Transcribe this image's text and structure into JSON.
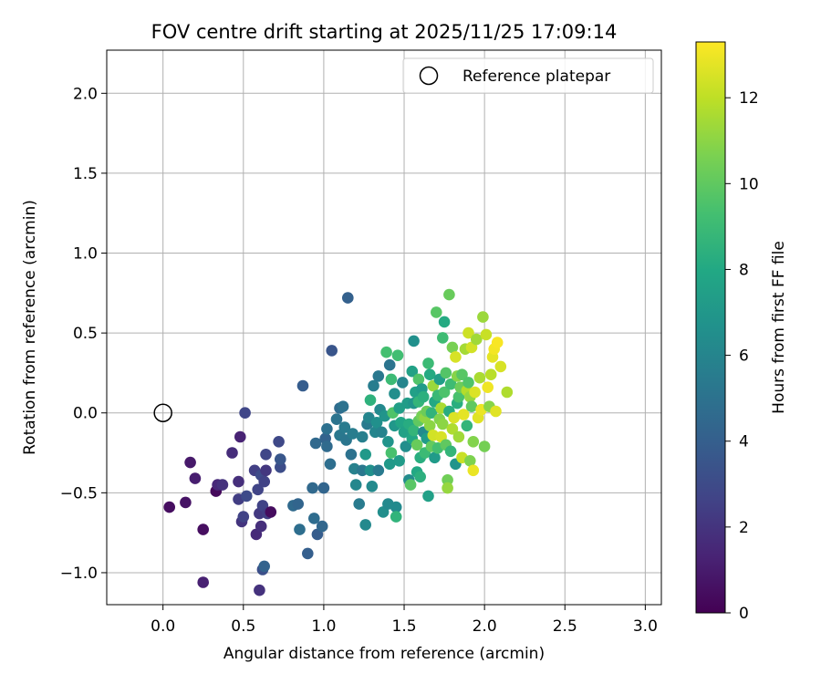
{
  "chart_data": {
    "type": "scatter",
    "title": "FOV centre drift starting at 2025/11/25 17:09:14",
    "xlabel": "Angular distance from reference (arcmin)",
    "ylabel": "Rotation from reference (arcmin)",
    "xlim": [
      -0.35,
      3.1
    ],
    "ylim": [
      -1.2,
      2.27
    ],
    "xticks": [
      0.0,
      0.5,
      1.0,
      1.5,
      2.0,
      2.5,
      3.0
    ],
    "xtick_labels": [
      "0.0",
      "0.5",
      "1.0",
      "1.5",
      "2.0",
      "2.5",
      "3.0"
    ],
    "yticks": [
      -1.0,
      -0.5,
      0.0,
      0.5,
      1.0,
      1.5,
      2.0
    ],
    "ytick_labels": [
      "−1.0",
      "−0.5",
      "0.0",
      "0.5",
      "1.0",
      "1.5",
      "2.0"
    ],
    "grid": true,
    "legend": {
      "placement": "top-right",
      "entries": [
        "Reference platepar"
      ]
    },
    "reference_point": {
      "x": 0.0,
      "y": 0.0
    },
    "colorbar": {
      "label": "Hours from first FF file",
      "colormap": "viridis",
      "range": [
        0,
        13.3
      ],
      "ticks": [
        0,
        2,
        4,
        6,
        8,
        10,
        12
      ],
      "tick_labels": [
        "0",
        "2",
        "4",
        "6",
        "8",
        "10",
        "12"
      ]
    },
    "points": [
      [
        0.04,
        -0.59,
        0.5
      ],
      [
        0.14,
        -0.56,
        0.7
      ],
      [
        0.17,
        -0.31,
        0.9
      ],
      [
        0.2,
        -0.41,
        1.1
      ],
      [
        0.25,
        -0.73,
        0.5
      ],
      [
        0.25,
        -1.06,
        1.2
      ],
      [
        0.33,
        -0.49,
        0.3
      ],
      [
        0.34,
        -0.45,
        1.6
      ],
      [
        0.37,
        -0.45,
        1.9
      ],
      [
        0.43,
        -0.25,
        1.7
      ],
      [
        0.47,
        -0.43,
        1.8
      ],
      [
        0.47,
        -0.54,
        2.4
      ],
      [
        0.48,
        -0.15,
        1.3
      ],
      [
        0.49,
        -0.68,
        2.0
      ],
      [
        0.5,
        -0.65,
        2.6
      ],
      [
        0.51,
        0.0,
        2.8
      ],
      [
        0.52,
        -0.52,
        3.0
      ],
      [
        0.57,
        -0.36,
        2.5
      ],
      [
        0.58,
        -0.76,
        1.6
      ],
      [
        0.59,
        -0.48,
        2.7
      ],
      [
        0.6,
        -0.63,
        2.2
      ],
      [
        0.6,
        -1.11,
        1.9
      ],
      [
        0.61,
        -0.39,
        3.0
      ],
      [
        0.61,
        -0.71,
        1.8
      ],
      [
        0.62,
        -0.58,
        2.6
      ],
      [
        0.62,
        -0.98,
        3.2
      ],
      [
        0.63,
        -0.96,
        4.2
      ],
      [
        0.63,
        -0.43,
        2.6
      ],
      [
        0.64,
        -0.36,
        2.1
      ],
      [
        0.64,
        -0.26,
        2.8
      ],
      [
        0.65,
        -0.63,
        2.4
      ],
      [
        0.67,
        -0.62,
        0.4
      ],
      [
        0.72,
        -0.18,
        2.9
      ],
      [
        0.73,
        -0.34,
        3.1
      ],
      [
        0.73,
        -0.29,
        3.6
      ],
      [
        0.81,
        -0.58,
        4.6
      ],
      [
        0.84,
        -0.57,
        4.3
      ],
      [
        0.85,
        -0.73,
        4.8
      ],
      [
        0.87,
        0.17,
        3.9
      ],
      [
        0.9,
        -0.88,
        4.0
      ],
      [
        0.93,
        -0.47,
        4.5
      ],
      [
        0.94,
        -0.66,
        4.7
      ],
      [
        0.95,
        -0.19,
        4.5
      ],
      [
        0.96,
        -0.76,
        3.9
      ],
      [
        0.99,
        -0.71,
        4.4
      ],
      [
        1.0,
        -0.47,
        4.3
      ],
      [
        1.01,
        -0.16,
        4.2
      ],
      [
        1.02,
        -0.21,
        4.6
      ],
      [
        1.02,
        -0.1,
        4.9
      ],
      [
        1.04,
        -0.32,
        4.8
      ],
      [
        1.05,
        0.39,
        3.5
      ],
      [
        1.08,
        -0.04,
        5.1
      ],
      [
        1.1,
        -0.14,
        5.3
      ],
      [
        1.1,
        0.03,
        4.7
      ],
      [
        1.12,
        0.04,
        5.0
      ],
      [
        1.13,
        -0.09,
        5.5
      ],
      [
        1.14,
        -0.17,
        5.2
      ],
      [
        1.15,
        0.72,
        4.1
      ],
      [
        1.17,
        -0.26,
        5.0
      ],
      [
        1.18,
        -0.13,
        5.6
      ],
      [
        1.19,
        -0.35,
        5.8
      ],
      [
        1.2,
        -0.45,
        6.1
      ],
      [
        1.22,
        -0.57,
        5.5
      ],
      [
        1.24,
        -0.15,
        5.7
      ],
      [
        1.24,
        -0.36,
        5.3
      ],
      [
        1.26,
        -0.26,
        7.1
      ],
      [
        1.26,
        -0.7,
        6.2
      ],
      [
        1.27,
        -0.07,
        5.4
      ],
      [
        1.28,
        -0.03,
        6.0
      ],
      [
        1.29,
        0.08,
        8.5
      ],
      [
        1.29,
        -0.36,
        6.6
      ],
      [
        1.3,
        -0.46,
        6.3
      ],
      [
        1.31,
        0.17,
        5.6
      ],
      [
        1.32,
        -0.12,
        6.0
      ],
      [
        1.33,
        -0.06,
        6.6
      ],
      [
        1.34,
        -0.36,
        5.4
      ],
      [
        1.34,
        0.23,
        5.3
      ],
      [
        1.35,
        0.02,
        6.2
      ],
      [
        1.36,
        -0.12,
        5.9
      ],
      [
        1.37,
        -0.62,
        6.5
      ],
      [
        1.38,
        -0.02,
        6.8
      ],
      [
        1.39,
        0.38,
        9.3
      ],
      [
        1.4,
        -0.57,
        6.2
      ],
      [
        1.4,
        -0.18,
        6.8
      ],
      [
        1.41,
        -0.32,
        7.1
      ],
      [
        1.41,
        0.3,
        5.1
      ],
      [
        1.42,
        -0.25,
        9.4
      ],
      [
        1.42,
        0.21,
        9.0
      ],
      [
        1.43,
        0.0,
        9.6
      ],
      [
        1.44,
        -0.08,
        7.0
      ],
      [
        1.44,
        0.12,
        6.5
      ],
      [
        1.45,
        -0.59,
        6.3
      ],
      [
        1.45,
        -0.65,
        8.6
      ],
      [
        1.46,
        0.36,
        9.2
      ],
      [
        1.47,
        -0.3,
        7.2
      ],
      [
        1.47,
        0.03,
        7.4
      ],
      [
        1.48,
        -0.06,
        7.8
      ],
      [
        1.49,
        0.19,
        6.0
      ],
      [
        1.5,
        -0.12,
        7.6
      ],
      [
        1.51,
        -0.21,
        6.5
      ],
      [
        1.52,
        0.06,
        7.3
      ],
      [
        1.53,
        -0.42,
        6.4
      ],
      [
        1.53,
        -0.07,
        8.2
      ],
      [
        1.54,
        -0.45,
        9.8
      ],
      [
        1.55,
        0.26,
        7.6
      ],
      [
        1.55,
        -0.16,
        7.9
      ],
      [
        1.56,
        0.45,
        6.6
      ],
      [
        1.56,
        -0.11,
        8.7
      ],
      [
        1.56,
        0.06,
        6.9
      ],
      [
        1.57,
        0.13,
        7.5
      ],
      [
        1.58,
        -0.2,
        10.2
      ],
      [
        1.58,
        -0.37,
        8.0
      ],
      [
        1.59,
        0.21,
        9.6
      ],
      [
        1.59,
        0.07,
        8.7
      ],
      [
        1.59,
        -0.05,
        10.0
      ],
      [
        1.6,
        -0.28,
        8.3
      ],
      [
        1.6,
        -0.4,
        8.4
      ],
      [
        1.61,
        0.15,
        7.2
      ],
      [
        1.61,
        -0.02,
        10.5
      ],
      [
        1.62,
        -0.12,
        6.3
      ],
      [
        1.62,
        0.1,
        8.4
      ],
      [
        1.63,
        -0.25,
        9.0
      ],
      [
        1.63,
        -0.03,
        11.1
      ],
      [
        1.64,
        0.01,
        10.3
      ],
      [
        1.64,
        -0.16,
        7.3
      ],
      [
        1.65,
        -0.52,
        7.5
      ],
      [
        1.65,
        0.31,
        9.0
      ],
      [
        1.66,
        -0.08,
        11.0
      ],
      [
        1.66,
        0.24,
        8.1
      ],
      [
        1.67,
        0.0,
        8.6
      ],
      [
        1.67,
        -0.21,
        10.1
      ],
      [
        1.68,
        0.17,
        11.3
      ],
      [
        1.68,
        -0.14,
        12.4
      ],
      [
        1.69,
        0.07,
        8.0
      ],
      [
        1.69,
        -0.28,
        7.2
      ],
      [
        1.7,
        0.63,
        9.8
      ],
      [
        1.71,
        0.11,
        8.9
      ],
      [
        1.71,
        -0.22,
        9.3
      ],
      [
        1.72,
        -0.04,
        10.8
      ],
      [
        1.72,
        0.21,
        7.4
      ],
      [
        1.73,
        -0.15,
        12.5
      ],
      [
        1.73,
        0.03,
        11.6
      ],
      [
        1.74,
        0.47,
        9.1
      ],
      [
        1.74,
        -0.07,
        11.0
      ],
      [
        1.75,
        0.13,
        9.5
      ],
      [
        1.75,
        0.57,
        8.1
      ],
      [
        1.76,
        -0.2,
        10.0
      ],
      [
        1.76,
        0.25,
        9.7
      ],
      [
        1.77,
        -0.42,
        10.4
      ],
      [
        1.77,
        -0.47,
        11.2
      ],
      [
        1.78,
        0.74,
        10.2
      ],
      [
        1.78,
        0.01,
        8.2
      ],
      [
        1.79,
        0.18,
        9.1
      ],
      [
        1.79,
        -0.24,
        8.7
      ],
      [
        1.8,
        0.41,
        10.6
      ],
      [
        1.8,
        -0.1,
        11.7
      ],
      [
        1.81,
        -0.03,
        12.6
      ],
      [
        1.82,
        -0.32,
        6.8
      ],
      [
        1.82,
        0.35,
        12.5
      ],
      [
        1.83,
        0.23,
        10.9
      ],
      [
        1.83,
        0.06,
        8.3
      ],
      [
        1.84,
        -0.15,
        11.4
      ],
      [
        1.84,
        0.1,
        9.4
      ],
      [
        1.85,
        0.16,
        10.3
      ],
      [
        1.86,
        -0.28,
        12.2
      ],
      [
        1.86,
        0.24,
        9.8
      ],
      [
        1.87,
        -0.01,
        12.8
      ],
      [
        1.88,
        0.4,
        11.5
      ],
      [
        1.89,
        0.14,
        11.8
      ],
      [
        1.89,
        -0.08,
        8.7
      ],
      [
        1.9,
        0.5,
        12.3
      ],
      [
        1.9,
        0.19,
        9.6
      ],
      [
        1.91,
        0.1,
        11.2
      ],
      [
        1.91,
        -0.3,
        10.7
      ],
      [
        1.92,
        0.41,
        12.4
      ],
      [
        1.92,
        0.04,
        10.0
      ],
      [
        1.93,
        -0.36,
        12.9
      ],
      [
        1.93,
        -0.18,
        10.8
      ],
      [
        1.94,
        0.13,
        12.6
      ],
      [
        1.95,
        0.46,
        11.4
      ],
      [
        1.96,
        -0.03,
        12.7
      ],
      [
        1.97,
        0.22,
        11.6
      ],
      [
        1.98,
        0.02,
        12.9
      ],
      [
        1.99,
        0.6,
        11.3
      ],
      [
        2.0,
        -0.21,
        10.5
      ],
      [
        2.01,
        0.49,
        12.2
      ],
      [
        2.02,
        0.16,
        13.0
      ],
      [
        2.03,
        0.04,
        10.9
      ],
      [
        2.04,
        0.24,
        11.9
      ],
      [
        2.05,
        0.35,
        12.8
      ],
      [
        2.06,
        0.4,
        13.1
      ],
      [
        2.07,
        0.01,
        12.7
      ],
      [
        2.08,
        0.44,
        13.2
      ],
      [
        2.1,
        0.29,
        12.5
      ],
      [
        2.14,
        0.13,
        11.7
      ]
    ]
  }
}
